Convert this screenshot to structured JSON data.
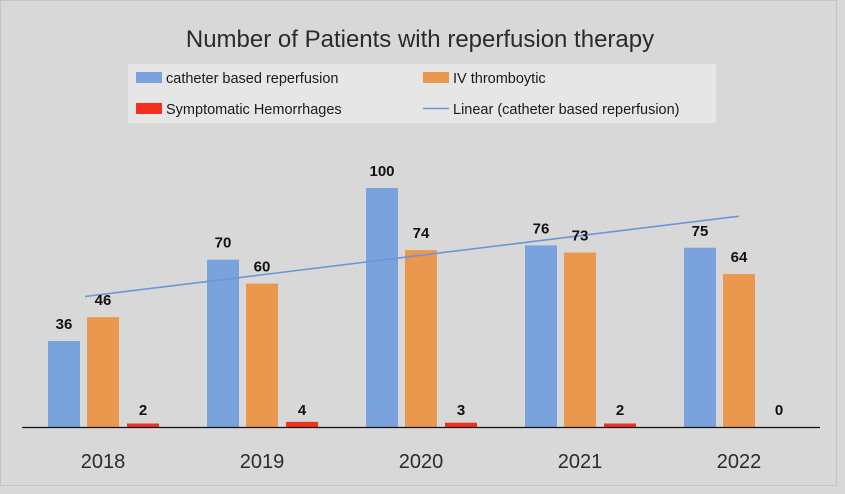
{
  "chart_data": {
    "type": "bar",
    "title": "Number of Patients with reperfusion therapy",
    "categories": [
      "2018",
      "2019",
      "2020",
      "2021",
      "2022"
    ],
    "series": [
      {
        "name": "catheter based reperfusion",
        "values": [
          36,
          70,
          100,
          76,
          75
        ],
        "color": "#7aa2dc"
      },
      {
        "name": "IV thromboytic",
        "values": [
          46,
          60,
          74,
          73,
          64
        ],
        "color": "#e9984d"
      },
      {
        "name": "Symptomatic Hemorrhages",
        "values": [
          2,
          4,
          3,
          2,
          0
        ],
        "color": "#f2301e"
      }
    ],
    "trendline": {
      "name": "Linear (catheter based reperfusion)",
      "series": "catheter based reperfusion",
      "type": "linear",
      "color": "#6a96d8"
    },
    "ylim": [
      0,
      110
    ],
    "xlabel": "",
    "ylabel": "",
    "grid": false,
    "legend_position": "top",
    "background_color": "#d8d8d8"
  }
}
